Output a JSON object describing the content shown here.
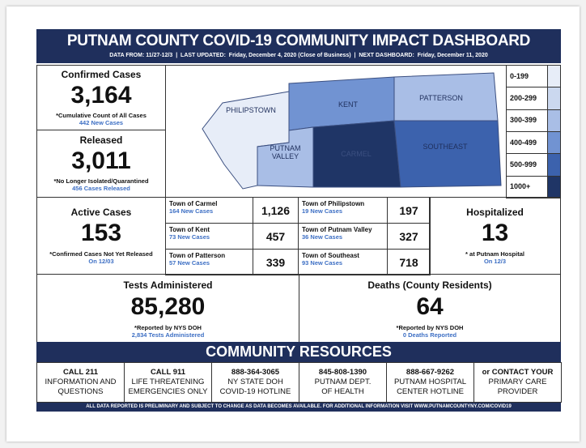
{
  "header": {
    "title": "PUTNAM COUNTY COVID-19 COMMUNITY IMPACT DASHBOARD",
    "subtitle": "DATA FROM: 11/27-12/3  |  LAST UPDATED:  Friday, December 4, 2020 (Close of Business)  |  NEXT DASHBOARD:  Friday, December 11, 2020"
  },
  "confirmed": {
    "title": "Confirmed Cases",
    "value": "3,164",
    "note": "*Cumulative Count of All Cases",
    "sub": "442 New Cases"
  },
  "released": {
    "title": "Released",
    "value": "3,011",
    "note": "*No Longer Isolated/Quarantined",
    "sub": "456 Cases Released"
  },
  "map": {
    "labels": [
      "PHILIPSTOWN",
      "KENT",
      "PATTERSON",
      "PUTNAM VALLEY",
      "CARMEL",
      "SOUTHEAST"
    ],
    "legend": [
      {
        "label": "0-199",
        "color": "#e7edf8"
      },
      {
        "label": "200-299",
        "color": "#cbd8ef"
      },
      {
        "label": "300-399",
        "color": "#a9bee6"
      },
      {
        "label": "400-499",
        "color": "#7193d2"
      },
      {
        "label": "500-999",
        "color": "#3c62ad"
      },
      {
        "label": "1000+",
        "color": "#1f3566"
      }
    ]
  },
  "active": {
    "title": "Active Cases",
    "value": "153",
    "note": "*Confirmed Cases Not Yet Released",
    "sub": "On 12/03"
  },
  "towns": [
    {
      "name": "Town of Carmel",
      "sub": "164 New Cases",
      "value": "1,126"
    },
    {
      "name": "Town of Kent",
      "sub": "73 New Cases",
      "value": "457"
    },
    {
      "name": "Town of Patterson",
      "sub": "57 New Cases",
      "value": "339"
    },
    {
      "name": "Town of Philipstown",
      "sub": "19 New Cases",
      "value": "197"
    },
    {
      "name": "Town of Putnam Valley",
      "sub": "36 New Cases",
      "value": "327"
    },
    {
      "name": "Town of Southeast",
      "sub": "93 New Cases",
      "value": "718"
    }
  ],
  "hospitalized": {
    "title": "Hospitalized",
    "value": "13",
    "note": "* at Putnam Hospital",
    "sub": "On 12/3"
  },
  "tests": {
    "title": "Tests Administered",
    "value": "85,280",
    "note": "*Reported by NYS DOH",
    "sub": "2,834 Tests Administered"
  },
  "deaths": {
    "title": "Deaths (County Residents)",
    "value": "64",
    "note": "*Reported by NYS DOH",
    "sub": "0 Deaths Reported"
  },
  "resources": {
    "title": "COMMUNITY RESOURCES",
    "items": [
      [
        "CALL 211",
        "INFORMATION AND",
        "QUESTIONS"
      ],
      [
        "CALL 911",
        "LIFE THREATENING",
        "EMERGENCIES ONLY"
      ],
      [
        "888-364-3065",
        "NY STATE DOH",
        "COVID-19 HOTLINE"
      ],
      [
        "845-808-1390",
        "PUTNAM DEPT.",
        "OF HEALTH"
      ],
      [
        "888-667-9262",
        "PUTNAM HOSPITAL",
        "CENTER HOTLINE"
      ],
      [
        "or CONTACT YOUR",
        "PRIMARY CARE",
        "PROVIDER"
      ]
    ]
  },
  "footer": "ALL DATA REPORTED IS PRELIMINARY AND SUBJECT TO CHANGE AS DATA BECOMES AVAILABLE. FOR ADDITIONAL INFORMATION VISIT WWW.PUTNAMCOUNTYNY.COM/COVID19"
}
